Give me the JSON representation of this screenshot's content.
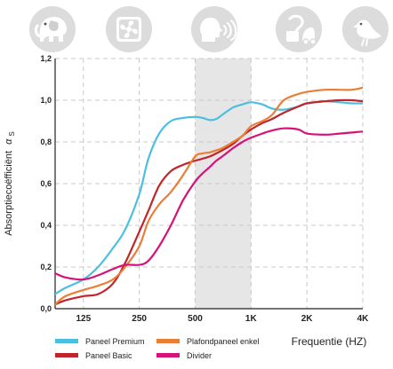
{
  "icons": [
    "elephant-icon",
    "fan-icon",
    "speaking-head-icon",
    "vacuum-cleaner-icon",
    "bird-icon"
  ],
  "chart_data": {
    "type": "line",
    "ylabel": "Absorptiecoëfficiënt",
    "ylabel_symbol": "α",
    "ylabel_sub": "S",
    "xlabel": "Frequentie (HZ)",
    "x_scale": "log",
    "x_ticks": [
      {
        "value": 125,
        "label": "125"
      },
      {
        "value": 250,
        "label": "250"
      },
      {
        "value": 500,
        "label": "500"
      },
      {
        "value": 1000,
        "label": "1K"
      },
      {
        "value": 2000,
        "label": "2K"
      },
      {
        "value": 4000,
        "label": "4K"
      }
    ],
    "y_ticks": [
      "0,0",
      "0,2",
      "0,4",
      "0,6",
      "0,8",
      "1,0",
      "1,2"
    ],
    "y_tick_values": [
      0,
      0.2,
      0.4,
      0.6,
      0.8,
      1.0,
      1.2
    ],
    "ylim": [
      0,
      1.2
    ],
    "xlim": [
      88,
      4000
    ],
    "grid": true,
    "highlight_band": {
      "from": 500,
      "to": 1000,
      "color": "#e6e6e6"
    },
    "legend_position": "bottom-left",
    "series": [
      {
        "name": "Paneel Premium",
        "color": "#4bbfe0",
        "x": [
          88,
          100,
          125,
          150,
          180,
          210,
          250,
          280,
          320,
          370,
          430,
          500,
          550,
          600,
          650,
          700,
          800,
          900,
          1000,
          1150,
          1300,
          1500,
          1800,
          2000,
          2500,
          3000,
          3500,
          4000
        ],
        "y": [
          0.07,
          0.1,
          0.14,
          0.2,
          0.29,
          0.38,
          0.55,
          0.72,
          0.84,
          0.9,
          0.915,
          0.92,
          0.915,
          0.905,
          0.91,
          0.93,
          0.965,
          0.98,
          0.99,
          0.98,
          0.96,
          0.955,
          0.97,
          0.985,
          0.995,
          0.99,
          0.985,
          0.985
        ]
      },
      {
        "name": "Paneel Basic",
        "color": "#c0252b",
        "x": [
          88,
          100,
          125,
          150,
          180,
          210,
          250,
          280,
          320,
          370,
          430,
          500,
          550,
          600,
          650,
          700,
          800,
          900,
          1000,
          1150,
          1300,
          1500,
          1800,
          2000,
          2500,
          3000,
          3500,
          4000
        ],
        "y": [
          0.02,
          0.04,
          0.06,
          0.07,
          0.12,
          0.22,
          0.37,
          0.47,
          0.59,
          0.66,
          0.69,
          0.71,
          0.72,
          0.73,
          0.745,
          0.76,
          0.79,
          0.83,
          0.86,
          0.89,
          0.91,
          0.94,
          0.97,
          0.985,
          0.995,
          1.0,
          1.0,
          0.995
        ]
      },
      {
        "name": "Plafondpaneel enkel",
        "color": "#ea7e36",
        "x": [
          88,
          100,
          125,
          150,
          180,
          210,
          250,
          280,
          320,
          370,
          430,
          500,
          550,
          600,
          650,
          700,
          800,
          900,
          1000,
          1150,
          1300,
          1500,
          1800,
          2000,
          2500,
          3000,
          3500,
          4000
        ],
        "y": [
          0.02,
          0.06,
          0.09,
          0.11,
          0.14,
          0.2,
          0.3,
          0.42,
          0.5,
          0.56,
          0.64,
          0.73,
          0.745,
          0.75,
          0.76,
          0.77,
          0.8,
          0.83,
          0.875,
          0.9,
          0.93,
          1.0,
          1.03,
          1.04,
          1.05,
          1.05,
          1.05,
          1.06
        ]
      },
      {
        "name": "Divider",
        "color": "#d6127a",
        "x": [
          88,
          100,
          125,
          150,
          180,
          210,
          250,
          280,
          320,
          370,
          430,
          500,
          550,
          600,
          650,
          700,
          800,
          900,
          1000,
          1150,
          1300,
          1500,
          1800,
          2000,
          2500,
          3000,
          3500,
          4000
        ],
        "y": [
          0.17,
          0.15,
          0.14,
          0.16,
          0.19,
          0.21,
          0.21,
          0.23,
          0.3,
          0.4,
          0.52,
          0.61,
          0.65,
          0.68,
          0.71,
          0.73,
          0.77,
          0.8,
          0.82,
          0.84,
          0.855,
          0.865,
          0.86,
          0.84,
          0.835,
          0.84,
          0.845,
          0.85
        ]
      }
    ]
  }
}
